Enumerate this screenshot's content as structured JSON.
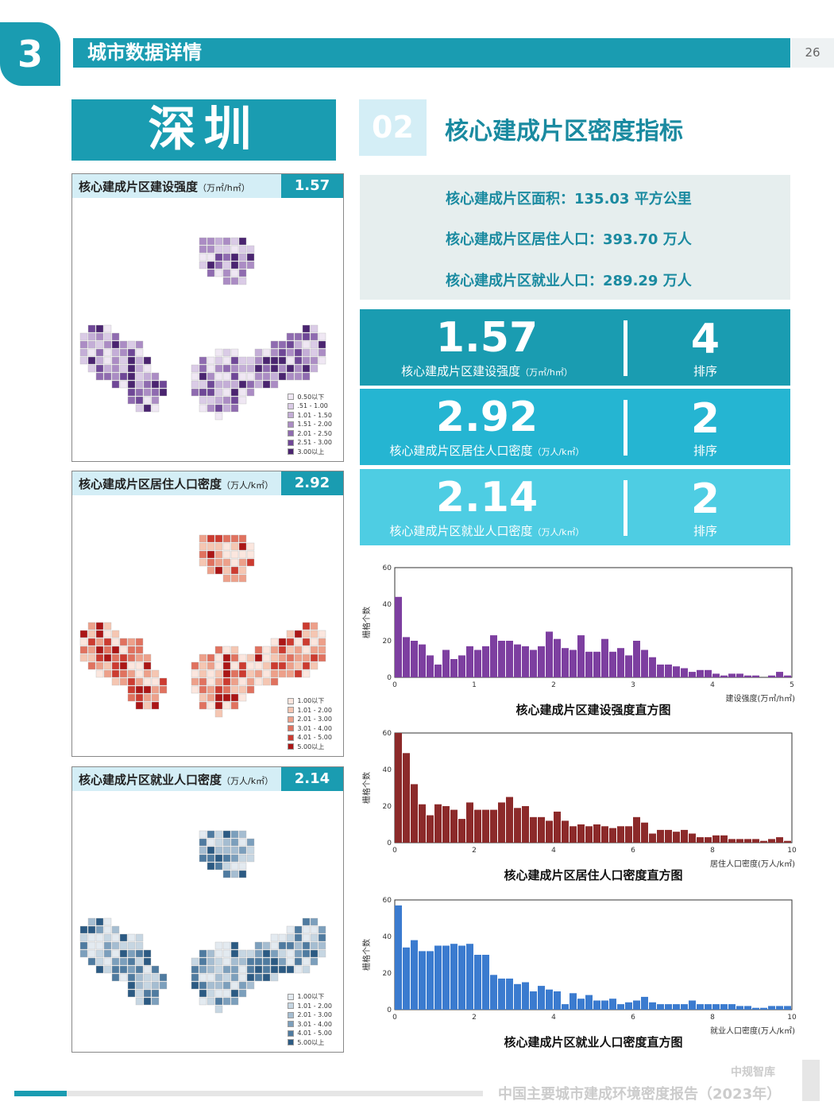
{
  "header": {
    "section_number": "3",
    "title": "城市数据详情",
    "page_number": "26"
  },
  "city": "深圳",
  "maps": [
    {
      "title": "核心建成片区建设强度",
      "unit": "（万㎡/h㎡）",
      "value": "1.57",
      "palette": [
        "#efe7f3",
        "#dacbe6",
        "#c4aed7",
        "#ab8cc4",
        "#8f6bb0",
        "#6f4797",
        "#4a2470"
      ],
      "legend": [
        "0.50以下",
        ".51 - 1.00",
        "1.01 - 1.50",
        "1.51 - 2.00",
        "2.01 - 2.50",
        "2.51 - 3.00",
        "3.00以上"
      ]
    },
    {
      "title": "核心建成片区居住人口密度",
      "unit": "（万人/k㎡）",
      "value": "2.92",
      "palette": [
        "#fbe6de",
        "#f5c6b2",
        "#eda08a",
        "#e0725f",
        "#cc3b30",
        "#ab1616"
      ],
      "legend": [
        "1.00以下",
        "1.01 - 2.00",
        "2.01 - 3.00",
        "3.01 - 4.00",
        "4.01 - 5.00",
        "5.00以上"
      ]
    },
    {
      "title": "核心建成片区就业人口密度",
      "unit": "（万人/k㎡）",
      "value": "2.14",
      "palette": [
        "#e3eaf0",
        "#c6d6e2",
        "#a5bdd1",
        "#7c9fbc",
        "#4f7ba0",
        "#2b5a83"
      ],
      "legend": [
        "1.00以下",
        "1.01 - 2.00",
        "2.01 - 3.00",
        "3.01 - 4.00",
        "4.01 - 5.00",
        "5.00以上"
      ]
    }
  ],
  "subsection": {
    "number": "02",
    "title": "核心建成片区密度指标"
  },
  "info": [
    "核心建成片区面积：135.03 平方公里",
    "核心建成片区居住人口：393.70 万人",
    "核心建成片区就业人口：289.29 万人"
  ],
  "stats": [
    {
      "value": "1.57",
      "label": "核心建成片区建设强度",
      "unit": "（万㎡/h㎡）",
      "rank": "4",
      "rank_label": "排序",
      "color": "#1a9cb1"
    },
    {
      "value": "2.92",
      "label": "核心建成片区居住人口密度",
      "unit": "（万人/k㎡）",
      "rank": "2",
      "rank_label": "排序",
      "color": "#25b5d2"
    },
    {
      "value": "2.14",
      "label": "核心建成片区就业人口密度",
      "unit": "（万人/k㎡）",
      "rank": "2",
      "rank_label": "排序",
      "color": "#4ecde3"
    }
  ],
  "chart_data": [
    {
      "type": "bar",
      "title": "核心建成片区建设强度直方图",
      "xlabel": "建设强度(万㎡/h㎡)",
      "ylabel": "栅格个数",
      "xlim": [
        0,
        5
      ],
      "ylim": [
        0,
        60
      ],
      "xticks": [
        "0",
        "1",
        "2",
        "3",
        "4",
        "5"
      ],
      "yticks": [
        "0",
        "20",
        "40",
        "60"
      ],
      "color": "#7d3fa0",
      "bin_width": 0.1,
      "values": [
        44,
        22,
        20,
        18,
        12,
        7,
        15,
        10,
        12,
        17,
        15,
        17,
        23,
        20,
        20,
        18,
        17,
        15,
        17,
        25,
        21,
        16,
        15,
        23,
        14,
        14,
        21,
        14,
        16,
        12,
        20,
        15,
        11,
        7,
        7,
        6,
        5,
        3,
        4,
        4,
        2,
        1,
        2,
        2,
        1,
        1,
        0,
        1,
        3,
        1,
        0,
        0,
        0,
        0,
        0,
        0,
        0,
        0,
        0,
        0,
        0,
        0,
        0,
        0,
        0,
        0,
        0,
        0,
        0,
        0,
        0,
        0,
        0,
        0,
        0,
        0,
        0,
        0,
        0,
        0,
        0,
        0,
        0,
        0,
        0,
        0,
        0,
        0,
        0,
        0,
        0,
        0,
        0,
        0,
        0,
        0,
        0,
        0,
        0,
        0
      ]
    },
    {
      "type": "bar",
      "title": "核心建成片区居住人口密度直方图",
      "xlabel": "居住人口密度(万人/k㎡)",
      "ylabel": "栅格个数",
      "xlim": [
        0,
        10
      ],
      "ylim": [
        0,
        60
      ],
      "xticks": [
        "0",
        "2",
        "4",
        "6",
        "8",
        "10"
      ],
      "yticks": [
        "0",
        "20",
        "40",
        "60"
      ],
      "color": "#8c2a2a",
      "bin_width": 0.2,
      "values": [
        60,
        49,
        32,
        21,
        15,
        21,
        20,
        18,
        13,
        22,
        18,
        18,
        18,
        22,
        25,
        19,
        20,
        14,
        14,
        12,
        17,
        12,
        9,
        10,
        9,
        10,
        9,
        8,
        9,
        9,
        14,
        11,
        5,
        7,
        7,
        6,
        7,
        5,
        3,
        3,
        4,
        4,
        2,
        2,
        2,
        2,
        1,
        2,
        3,
        1,
        2,
        2,
        3,
        1,
        2,
        3,
        1,
        1,
        1,
        2
      ]
    },
    {
      "type": "bar",
      "title": "核心建成片区就业人口密度直方图",
      "xlabel": "就业人口密度(万人/k㎡)",
      "ylabel": "栅格个数",
      "xlim": [
        0,
        10
      ],
      "ylim": [
        0,
        60
      ],
      "xticks": [
        "0",
        "2",
        "4",
        "6",
        "8",
        "10"
      ],
      "yticks": [
        "0",
        "20",
        "40",
        "60"
      ],
      "color": "#3b7bcf",
      "bin_width": 0.2,
      "values": [
        57,
        34,
        38,
        32,
        32,
        35,
        35,
        36,
        35,
        36,
        30,
        30,
        19,
        17,
        17,
        14,
        15,
        10,
        13,
        11,
        10,
        3,
        9,
        6,
        8,
        5,
        5,
        6,
        3,
        4,
        5,
        7,
        4,
        3,
        3,
        3,
        3,
        5,
        3,
        3,
        3,
        3,
        3,
        2,
        2,
        1,
        1,
        2,
        2,
        2,
        1,
        1,
        1,
        0,
        1,
        1,
        1,
        0,
        1,
        1
      ]
    }
  ],
  "footer": {
    "brand": "中规智库",
    "report": "中国主要城市建成环境密度报告（2023年）"
  }
}
